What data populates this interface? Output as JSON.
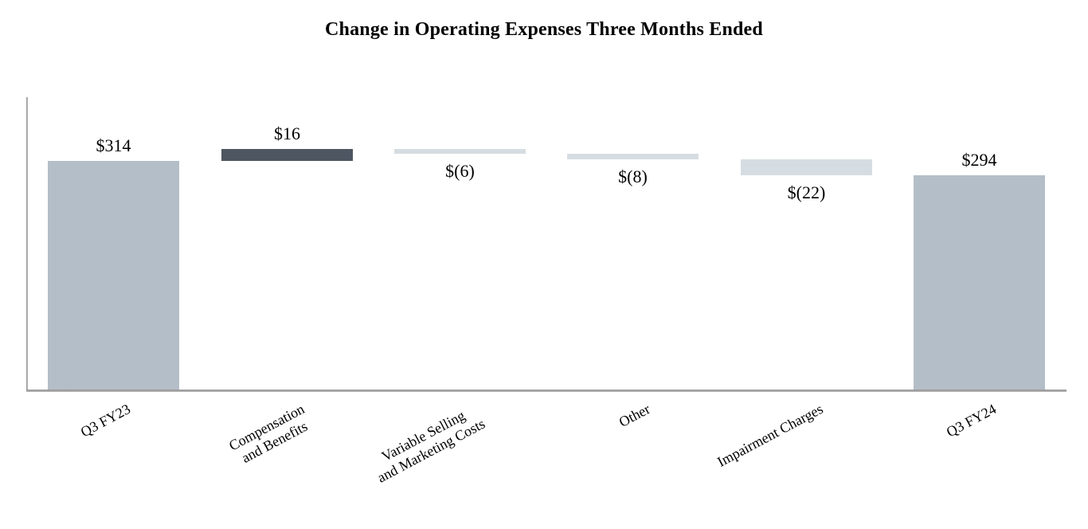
{
  "title": "Change in Operating Expenses Three Months Ended",
  "chart_data": {
    "type": "bar",
    "subtype": "waterfall",
    "title": "Change in Operating Expenses Three Months Ended",
    "xlabel": "",
    "ylabel": "",
    "ylim": [
      0,
      340
    ],
    "grid": false,
    "legend": false,
    "start_total": 314,
    "end_total": 294,
    "steps": [
      {
        "category": "Q3 FY23",
        "category_lines": [
          "Q3 FY23"
        ],
        "value": 314,
        "kind": "total",
        "label": "$314",
        "label_position": "above"
      },
      {
        "category": "Compensation and Benefits",
        "category_lines": [
          "Compensation",
          "and Benefits"
        ],
        "value": 16,
        "kind": "increase",
        "label": "$16",
        "label_position": "above"
      },
      {
        "category": "Variable Selling and Marketing Costs",
        "category_lines": [
          "Variable Selling",
          "and Marketing Costs"
        ],
        "value": -6,
        "kind": "decrease",
        "label": "$(6)",
        "label_position": "below"
      },
      {
        "category": "Other",
        "category_lines": [
          "Other"
        ],
        "value": -8,
        "kind": "decrease",
        "label": "$(8)",
        "label_position": "below"
      },
      {
        "category": "Impairment Charges",
        "category_lines": [
          "Impairment Charges"
        ],
        "value": -22,
        "kind": "decrease",
        "label": "$(22)",
        "label_position": "below"
      },
      {
        "category": "Q3 FY24",
        "category_lines": [
          "Q3 FY24"
        ],
        "value": 294,
        "kind": "total",
        "label": "$294",
        "label_position": "above"
      }
    ],
    "colors": {
      "total": "#b4bec8",
      "increase": "#4d5661",
      "decrease": "#d6dde2",
      "axis": "#9e9e9e",
      "text": "#000000"
    }
  }
}
